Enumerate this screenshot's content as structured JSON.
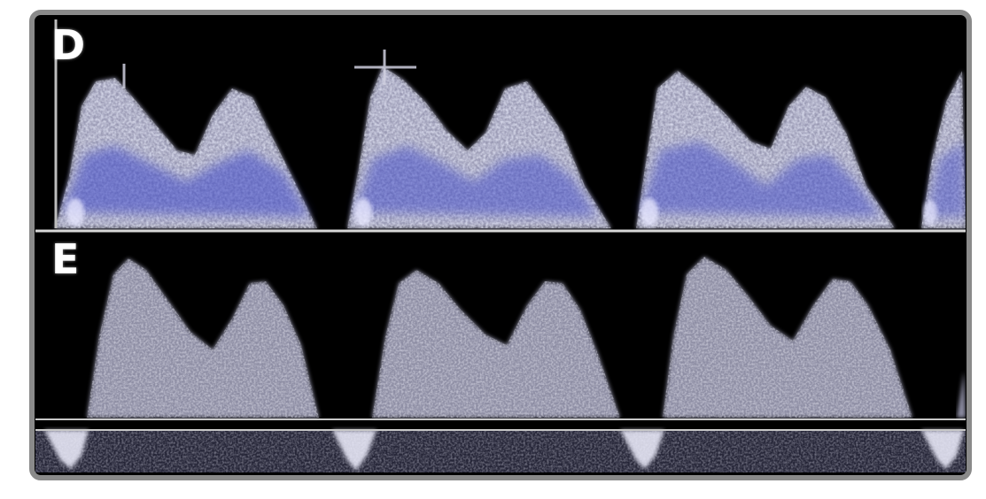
{
  "panels": [
    {
      "label": "D",
      "style": "color-doppler"
    },
    {
      "label": "E",
      "style": "grayscale-doppler"
    }
  ],
  "colors": {
    "background": "#000000",
    "frame_border": "#8a8a8a",
    "spectral_white": "#e6e6f2",
    "spectral_blue": "#4a52c8",
    "baseline": "#d8d8d8"
  }
}
